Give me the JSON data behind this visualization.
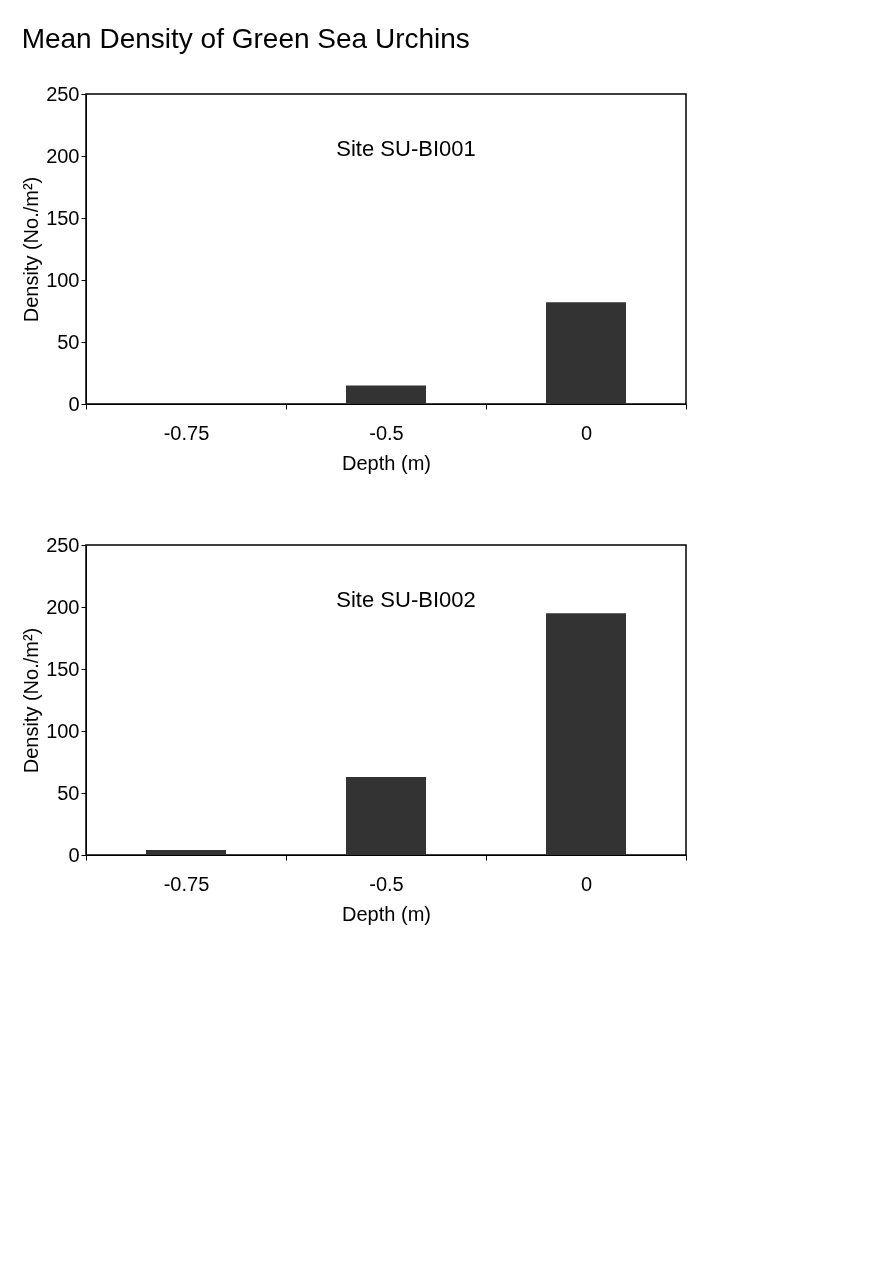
{
  "chart_data": [
    {
      "type": "bar",
      "title": "Mean Density of Green Sea Urchins",
      "xlabel": "Depth (m)",
      "ylabel": "Density (No./m²)",
      "annotations": [
        "Site SU-BI001"
      ],
      "categories": [
        "-0.75",
        "-0.5",
        "0"
      ],
      "values": [
        0,
        15,
        82
      ],
      "color": "#333333",
      "ylim": [
        0,
        250
      ],
      "yticks": [
        0,
        50,
        100,
        150,
        200,
        250
      ],
      "grid": false
    },
    {
      "type": "bar",
      "xlabel": "Depth (m)",
      "ylabel": "Density (No./m²)",
      "annotations": [
        "Site SU-BI002"
      ],
      "categories": [
        "-0.75",
        "-0.5",
        "0"
      ],
      "values": [
        4,
        63,
        195
      ],
      "color": "#333333",
      "ylim": [
        0,
        250
      ],
      "yticks": [
        0,
        50,
        100,
        150,
        200,
        250
      ],
      "grid": false
    }
  ]
}
